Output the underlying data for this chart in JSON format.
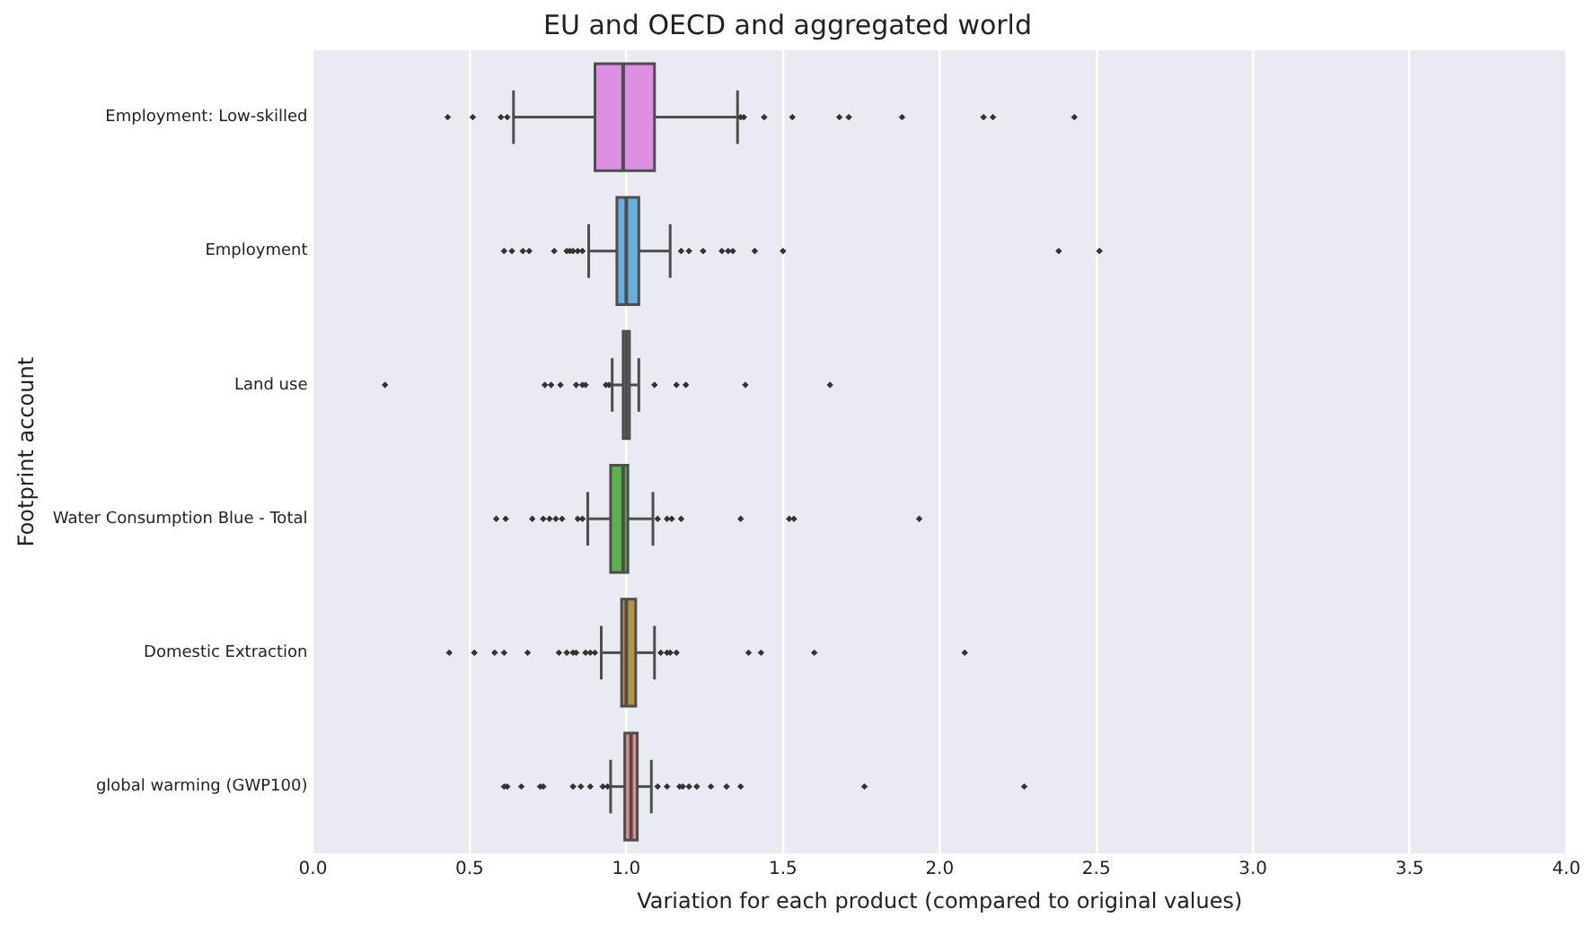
{
  "chart_data": {
    "type": "box",
    "title": "EU and OECD and aggregated world",
    "xlabel": "Variation for each product (compared to original values)",
    "ylabel": "Footprint account",
    "orientation": "horizontal",
    "categories": [
      "Employment: Low-skilled",
      "Employment",
      "Land use",
      "Water Consumption Blue - Total",
      "Domestic Extraction",
      "global warming (GWP100)"
    ],
    "colors": [
      "#dd8fe2",
      "#6aaee0",
      "#4fb5b0",
      "#5bb14a",
      "#b5963e",
      "#e8888f"
    ],
    "boxes": [
      {
        "low": 0.64,
        "q1": 0.9,
        "median": 0.99,
        "q3": 1.09,
        "high": 1.355,
        "outliers": [
          0.43,
          0.51,
          0.6,
          0.62,
          1.365,
          1.375,
          1.44,
          1.53,
          1.68,
          1.71,
          1.88,
          2.14,
          2.17,
          2.43
        ]
      },
      {
        "low": 0.88,
        "q1": 0.97,
        "median": 1.0,
        "q3": 1.04,
        "high": 1.14,
        "outliers": [
          0.61,
          0.635,
          0.67,
          0.69,
          0.77,
          0.81,
          0.82,
          0.83,
          0.845,
          0.86,
          1.175,
          1.2,
          1.245,
          1.305,
          1.325,
          1.34,
          1.41,
          1.5,
          2.38,
          2.51
        ]
      },
      {
        "low": 0.955,
        "q1": 0.99,
        "median": 1.0,
        "q3": 1.01,
        "high": 1.04,
        "outliers": [
          0.23,
          0.74,
          0.76,
          0.79,
          0.84,
          0.86,
          0.87,
          0.935,
          0.945,
          1.09,
          1.16,
          1.19,
          1.38,
          1.65
        ]
      },
      {
        "low": 0.877,
        "q1": 0.95,
        "median": 0.99,
        "q3": 1.005,
        "high": 1.085,
        "outliers": [
          0.585,
          0.615,
          0.7,
          0.735,
          0.755,
          0.775,
          0.795,
          0.845,
          0.86,
          1.1,
          1.13,
          1.145,
          1.175,
          1.365,
          1.52,
          1.535,
          1.935
        ]
      },
      {
        "low": 0.92,
        "q1": 0.985,
        "median": 1.0,
        "q3": 1.03,
        "high": 1.09,
        "outliers": [
          0.435,
          0.515,
          0.58,
          0.61,
          0.685,
          0.785,
          0.81,
          0.83,
          0.84,
          0.87,
          0.885,
          0.9,
          1.11,
          1.13,
          1.14,
          1.16,
          1.39,
          1.43,
          1.6,
          2.08
        ]
      },
      {
        "low": 0.95,
        "q1": 0.995,
        "median": 1.015,
        "q3": 1.035,
        "high": 1.08,
        "outliers": [
          0.61,
          0.62,
          0.665,
          0.725,
          0.735,
          0.83,
          0.855,
          0.885,
          0.925,
          0.94,
          1.1,
          1.13,
          1.17,
          1.18,
          1.2,
          1.225,
          1.27,
          1.32,
          1.365,
          1.76,
          2.27
        ]
      }
    ],
    "xlim": [
      0,
      4
    ],
    "xticks": [
      {
        "value": 0,
        "label": "0.0"
      },
      {
        "value": 0.5,
        "label": "0.5"
      },
      {
        "value": 1,
        "label": "1.0"
      },
      {
        "value": 1.5,
        "label": "1.5"
      },
      {
        "value": 2,
        "label": "2.0"
      },
      {
        "value": 2.5,
        "label": "2.5"
      },
      {
        "value": 3,
        "label": "3.0"
      },
      {
        "value": 3.5,
        "label": "3.5"
      },
      {
        "value": 4,
        "label": "4.0"
      }
    ],
    "grid": "x",
    "marker": "diamond"
  }
}
